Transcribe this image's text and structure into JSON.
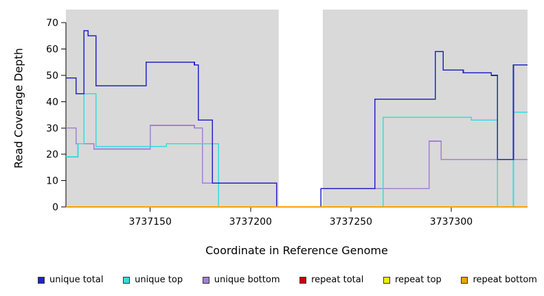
{
  "chart_data": {
    "type": "line",
    "subtype": "step",
    "title": "",
    "xlabel": "Coordinate in Reference Genome",
    "ylabel": "Read Coverage Depth",
    "xlim": [
      3737108,
      3737338
    ],
    "ylim": [
      0,
      75
    ],
    "x_ticks": [
      3737150,
      3737200,
      3737250,
      3737300
    ],
    "y_ticks": [
      0,
      10,
      20,
      30,
      40,
      50,
      60,
      70
    ],
    "grid": false,
    "plot_bg": "#d9d9d9",
    "mask_region": {
      "x_start": 3737214,
      "x_end": 3737236,
      "color": "#ffffff"
    },
    "legend_position": "bottom",
    "series": [
      {
        "name": "unique total",
        "color": "#2222cc",
        "x_end": 3737338,
        "steps": [
          [
            3737108,
            49
          ],
          [
            3737113,
            43
          ],
          [
            3737117,
            67
          ],
          [
            3737119,
            65
          ],
          [
            3737123,
            46
          ],
          [
            3737148,
            55
          ],
          [
            3737172,
            54
          ],
          [
            3737174,
            33
          ],
          [
            3737181,
            9
          ],
          [
            3737213,
            0
          ],
          [
            3737235,
            7
          ],
          [
            3737262,
            41
          ],
          [
            3737292,
            59
          ],
          [
            3737296,
            52
          ],
          [
            3737306,
            51
          ],
          [
            3737320,
            50
          ],
          [
            3737323,
            18
          ],
          [
            3737331,
            54
          ]
        ]
      },
      {
        "name": "unique top",
        "color": "#33dddd",
        "x_end": 3737338,
        "steps": [
          [
            3737108,
            19
          ],
          [
            3737114,
            24
          ],
          [
            3737117,
            43
          ],
          [
            3737123,
            23
          ],
          [
            3737158,
            24
          ],
          [
            3737184,
            0
          ],
          [
            3737266,
            34
          ],
          [
            3737310,
            33
          ],
          [
            3737323,
            0
          ],
          [
            3737331,
            36
          ]
        ]
      },
      {
        "name": "unique bottom",
        "color": "#a37fd6",
        "x_end": 3737338,
        "steps": [
          [
            3737108,
            30
          ],
          [
            3737113,
            24
          ],
          [
            3737122,
            22
          ],
          [
            3737150,
            31
          ],
          [
            3737172,
            30
          ],
          [
            3737176,
            9
          ],
          [
            3737213,
            0
          ],
          [
            3737235,
            7
          ],
          [
            3737289,
            25
          ],
          [
            3737295,
            18
          ]
        ]
      },
      {
        "name": "repeat total",
        "color": "#cc0000",
        "x_end": 3737338,
        "steps": [
          [
            3737108,
            0
          ]
        ]
      },
      {
        "name": "repeat top",
        "color": "#eeee00",
        "x_end": 3737338,
        "steps": [
          [
            3737108,
            0
          ]
        ]
      },
      {
        "name": "repeat bottom",
        "color": "#ffa000",
        "x_end": 3737338,
        "steps": [
          [
            3737108,
            0
          ]
        ]
      }
    ]
  }
}
